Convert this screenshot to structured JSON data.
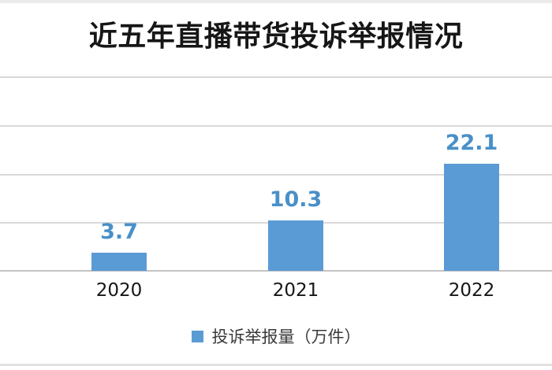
{
  "chart_data": {
    "type": "bar",
    "title": "近五年直播带货投诉举报情况",
    "categories": [
      "2020",
      "2021",
      "2022"
    ],
    "values": [
      3.7,
      10.3,
      22.1
    ],
    "value_labels": [
      "3.7",
      "10.3",
      "22.1"
    ],
    "series": [
      {
        "name": "投诉举报量（万件）",
        "values": [
          3.7,
          10.3,
          22.1
        ]
      }
    ],
    "ylim": [
      0,
      40
    ],
    "grid_step": 10,
    "grid": true,
    "y_tick_labels_visible": false,
    "legend_position": "bottom",
    "colors": {
      "bar": "#5b9bd5",
      "data_label": "#4a90c8",
      "gridline": "#d9d9d9",
      "axis_line": "#c3c3c3",
      "title_text": "#161616",
      "axis_label_text": "#161616",
      "legend_text": "#3a3a3a"
    }
  },
  "legend": {
    "marker": "blue-square",
    "label": "投诉举报量（万件）"
  }
}
